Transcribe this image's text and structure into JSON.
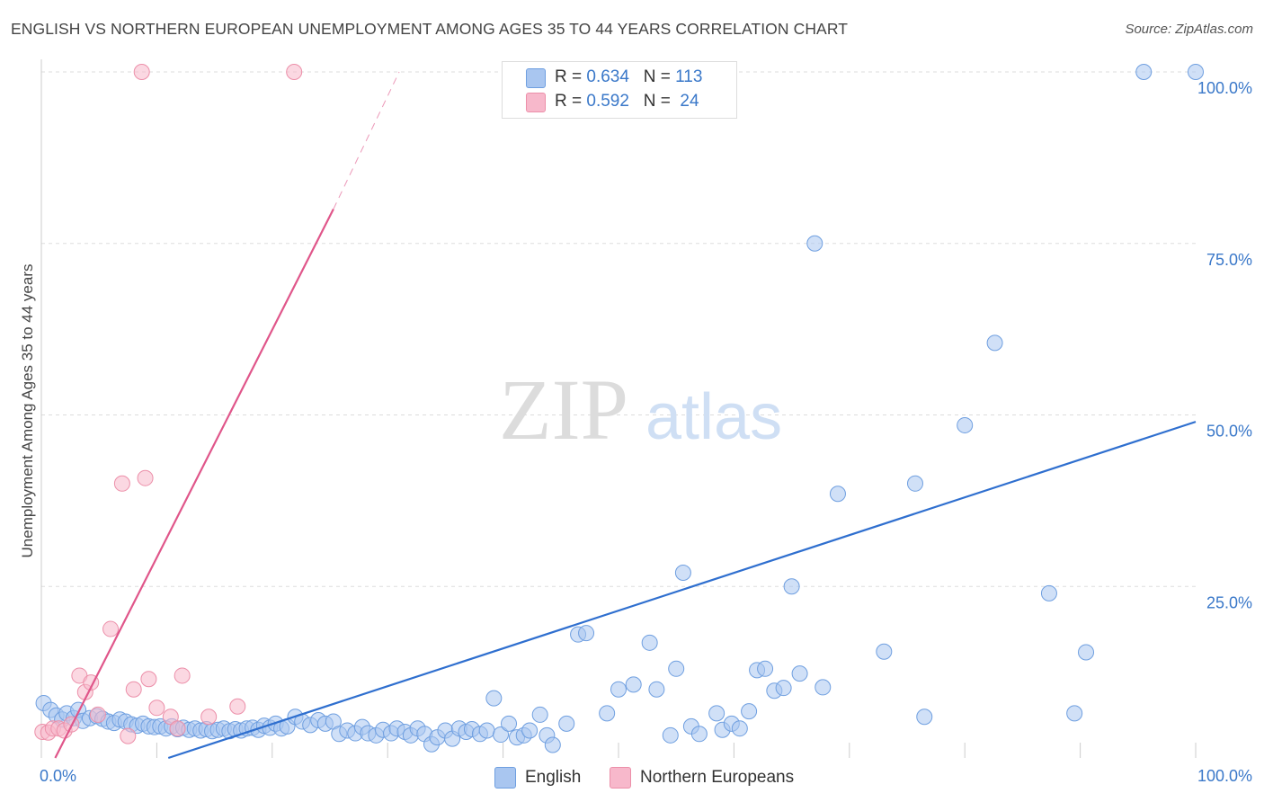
{
  "title": "ENGLISH VS NORTHERN EUROPEAN UNEMPLOYMENT AMONG AGES 35 TO 44 YEARS CORRELATION CHART",
  "source": "Source: ZipAtlas.com",
  "watermark": {
    "zip": "ZIP",
    "atlas": "atlas"
  },
  "stats": [
    {
      "r_label": "R = ",
      "r_value": "0.634",
      "n_label": "N = ",
      "n_value": "113",
      "color": "#a9c6f0"
    },
    {
      "r_label": "R = ",
      "r_value": "0.592",
      "n_label": "N = ",
      "n_value": " 24",
      "color": "#f7b8cb"
    }
  ],
  "legend": [
    {
      "label": "English",
      "color": "#a9c6f0"
    },
    {
      "label": "Northern Europeans",
      "color": "#f7b8cb"
    }
  ],
  "chart_data": {
    "type": "scatter",
    "title": "ENGLISH VS NORTHERN EUROPEAN UNEMPLOYMENT AMONG AGES 35 TO 44 YEARS CORRELATION CHART",
    "xlabel": "",
    "ylabel": "Unemployment Among Ages 35 to 44 years",
    "xlim": [
      0,
      100
    ],
    "ylim": [
      0,
      100
    ],
    "x_tick_labels": [
      "0.0%",
      "100.0%"
    ],
    "y_ticks": [
      {
        "value": 25,
        "label": "25.0%"
      },
      {
        "value": 50,
        "label": "50.0%"
      },
      {
        "value": 75,
        "label": "75.0%"
      },
      {
        "value": 100,
        "label": "100.0%"
      }
    ],
    "grid": true,
    "legend_position": "bottom-center",
    "series": [
      {
        "name": "English",
        "color": "#6f9fe0",
        "fill": "#a9c6f0",
        "trend": {
          "x1": 11,
          "y1": 0,
          "x2": 100,
          "y2": 49,
          "color": "#2f6fcf"
        },
        "points": [
          [
            0.2,
            8.0
          ],
          [
            0.8,
            7.0
          ],
          [
            1.3,
            6.2
          ],
          [
            1.8,
            5.6
          ],
          [
            2.2,
            6.5
          ],
          [
            2.8,
            5.8
          ],
          [
            3.2,
            7.0
          ],
          [
            3.6,
            5.4
          ],
          [
            4.2,
            5.8
          ],
          [
            4.8,
            6.1
          ],
          [
            5.3,
            5.7
          ],
          [
            5.8,
            5.3
          ],
          [
            6.3,
            5.1
          ],
          [
            6.8,
            5.6
          ],
          [
            7.3,
            5.3
          ],
          [
            7.8,
            4.9
          ],
          [
            8.3,
            4.7
          ],
          [
            8.8,
            5.0
          ],
          [
            9.3,
            4.6
          ],
          [
            9.8,
            4.5
          ],
          [
            10.3,
            4.6
          ],
          [
            10.8,
            4.3
          ],
          [
            11.3,
            4.6
          ],
          [
            11.8,
            4.2
          ],
          [
            12.3,
            4.4
          ],
          [
            12.8,
            4.1
          ],
          [
            13.3,
            4.3
          ],
          [
            13.8,
            4.0
          ],
          [
            14.3,
            4.2
          ],
          [
            14.8,
            3.9
          ],
          [
            15.3,
            4.1
          ],
          [
            15.8,
            4.3
          ],
          [
            16.3,
            3.9
          ],
          [
            16.8,
            4.2
          ],
          [
            17.3,
            4.0
          ],
          [
            17.8,
            4.3
          ],
          [
            18.3,
            4.4
          ],
          [
            18.8,
            4.1
          ],
          [
            19.3,
            4.7
          ],
          [
            19.8,
            4.4
          ],
          [
            20.3,
            5.0
          ],
          [
            20.8,
            4.3
          ],
          [
            21.3,
            4.6
          ],
          [
            22.0,
            6.0
          ],
          [
            22.6,
            5.3
          ],
          [
            23.3,
            4.8
          ],
          [
            24.0,
            5.5
          ],
          [
            24.6,
            5.0
          ],
          [
            25.3,
            5.3
          ],
          [
            25.8,
            3.5
          ],
          [
            26.5,
            4.0
          ],
          [
            27.2,
            3.6
          ],
          [
            27.8,
            4.5
          ],
          [
            28.3,
            3.6
          ],
          [
            29.0,
            3.3
          ],
          [
            29.6,
            4.1
          ],
          [
            30.3,
            3.6
          ],
          [
            30.8,
            4.3
          ],
          [
            31.5,
            3.8
          ],
          [
            32.0,
            3.3
          ],
          [
            32.6,
            4.3
          ],
          [
            33.2,
            3.5
          ],
          [
            33.8,
            2.0
          ],
          [
            34.3,
            3.0
          ],
          [
            35.0,
            4.0
          ],
          [
            35.6,
            2.8
          ],
          [
            36.2,
            4.3
          ],
          [
            36.8,
            3.8
          ],
          [
            37.3,
            4.2
          ],
          [
            38.0,
            3.5
          ],
          [
            38.6,
            4.0
          ],
          [
            39.2,
            8.7
          ],
          [
            39.8,
            3.4
          ],
          [
            40.5,
            5.0
          ],
          [
            41.2,
            3.0
          ],
          [
            41.8,
            3.3
          ],
          [
            42.3,
            4.0
          ],
          [
            43.2,
            6.3
          ],
          [
            43.8,
            3.3
          ],
          [
            44.3,
            1.9
          ],
          [
            45.5,
            5.0
          ],
          [
            46.5,
            18.0
          ],
          [
            47.2,
            18.2
          ],
          [
            49.0,
            6.5
          ],
          [
            50.0,
            10.0
          ],
          [
            51.3,
            10.7
          ],
          [
            52.7,
            16.8
          ],
          [
            53.3,
            10.0
          ],
          [
            54.5,
            3.3
          ],
          [
            55.0,
            13.0
          ],
          [
            55.6,
            27.0
          ],
          [
            56.3,
            4.6
          ],
          [
            57.0,
            3.5
          ],
          [
            58.5,
            6.5
          ],
          [
            59.0,
            4.1
          ],
          [
            59.8,
            5.0
          ],
          [
            60.5,
            4.3
          ],
          [
            61.3,
            6.8
          ],
          [
            62.0,
            12.8
          ],
          [
            62.7,
            13.0
          ],
          [
            63.5,
            9.8
          ],
          [
            64.3,
            10.2
          ],
          [
            65.0,
            25.0
          ],
          [
            65.7,
            12.3
          ],
          [
            67.0,
            75.0
          ],
          [
            67.7,
            10.3
          ],
          [
            69.0,
            38.5
          ],
          [
            73.0,
            15.5
          ],
          [
            75.7,
            40.0
          ],
          [
            76.5,
            6.0
          ],
          [
            80.0,
            48.5
          ],
          [
            82.6,
            60.5
          ],
          [
            87.3,
            24.0
          ],
          [
            89.5,
            6.5
          ],
          [
            90.5,
            15.4
          ],
          [
            95.5,
            100
          ],
          [
            100,
            100
          ]
        ]
      },
      {
        "name": "Northern Europeans",
        "color": "#ec8fa9",
        "fill": "#f7b8cb",
        "trend": {
          "x1": 1.2,
          "y1": 0,
          "x2": 25.3,
          "y2": 80,
          "color": "#e0568a",
          "dash_x2": 31.0,
          "dash_y2": 100
        },
        "points": [
          [
            0.1,
            3.8
          ],
          [
            0.6,
            3.7
          ],
          [
            1.0,
            4.3
          ],
          [
            1.5,
            4.3
          ],
          [
            2.0,
            4.0
          ],
          [
            2.6,
            4.9
          ],
          [
            3.3,
            12.0
          ],
          [
            3.8,
            9.6
          ],
          [
            4.3,
            11.0
          ],
          [
            4.9,
            6.3
          ],
          [
            6.0,
            18.8
          ],
          [
            7.0,
            40.0
          ],
          [
            7.5,
            3.2
          ],
          [
            8.0,
            10.0
          ],
          [
            8.7,
            100
          ],
          [
            9.0,
            40.8
          ],
          [
            9.3,
            11.5
          ],
          [
            10.0,
            7.3
          ],
          [
            11.2,
            6.0
          ],
          [
            11.8,
            4.3
          ],
          [
            12.2,
            12.0
          ],
          [
            14.5,
            6.0
          ],
          [
            17.0,
            7.5
          ],
          [
            21.9,
            100
          ]
        ]
      }
    ]
  }
}
